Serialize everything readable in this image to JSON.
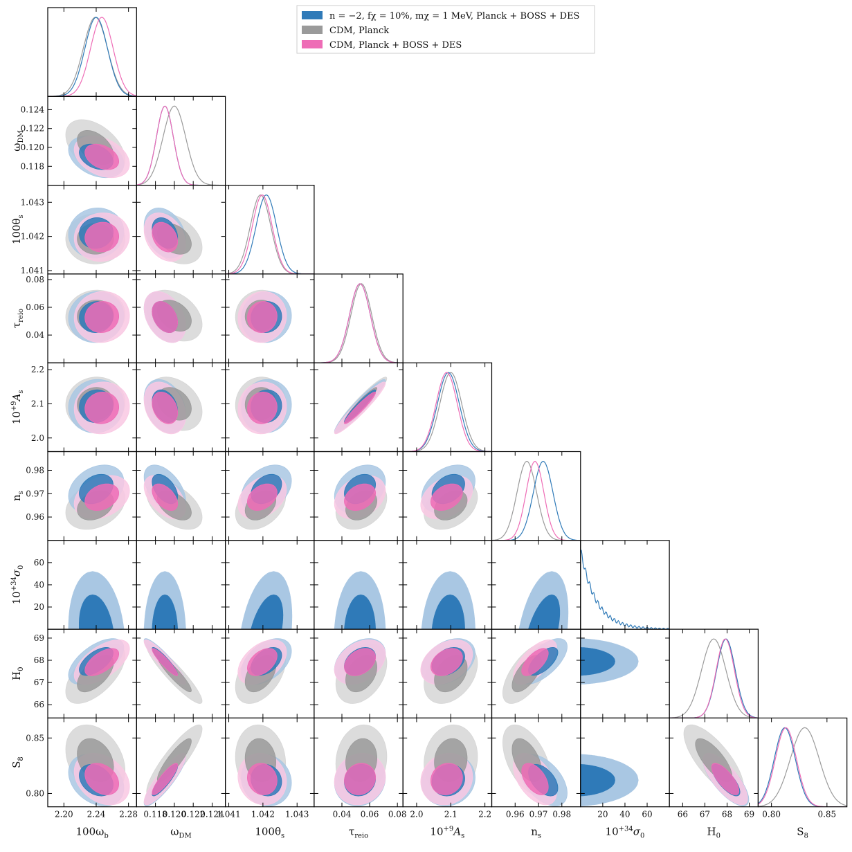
{
  "chart_data": {
    "type": "scatter",
    "subtype": "triangle-corner-plot",
    "title": "",
    "legend_position": "top-right",
    "colors": {
      "blue": "#2f7ab8",
      "blue_light": "#a9c7e3",
      "gray": "#9a9a9a",
      "gray_light": "#d6d6d6",
      "pink": "#ee6cb6",
      "pink_light": "#f9c8e3"
    },
    "series": [
      {
        "name": "n = −2, fχ = 10%, mχ = 1 MeV, Planck + BOSS + DES",
        "color": "#2f7ab8",
        "light": "#a9c7e3"
      },
      {
        "name": "CDM, Planck",
        "color": "#9a9a9a",
        "light": "#d6d6d6"
      },
      {
        "name": "CDM, Planck + BOSS + DES",
        "color": "#ee6cb6",
        "light": "#f9c8e3"
      }
    ],
    "parameters": [
      {
        "id": "wb",
        "label_main": "100ω",
        "label_sub": "b",
        "label_sup": "",
        "range": [
          2.18,
          2.29
        ],
        "ticks": [
          2.2,
          2.24,
          2.28
        ],
        "tick_labels": [
          "2.20",
          "2.24",
          "2.28"
        ],
        "means": [
          2.24,
          2.239,
          2.247
        ],
        "sigmas": [
          0.014,
          0.015,
          0.014
        ]
      },
      {
        "id": "wdm",
        "label_main": "ω",
        "label_sub": "DM",
        "label_sup": "",
        "range": [
          0.116,
          0.1254
        ],
        "ticks": [
          0.118,
          0.12,
          0.122,
          0.124
        ],
        "tick_labels": [
          "0.118",
          "0.120",
          "0.122",
          "0.124"
        ],
        "means": [
          0.119,
          0.12,
          0.119
        ],
        "sigmas": [
          0.0009,
          0.0012,
          0.0009
        ]
      },
      {
        "id": "th",
        "label_main": "100θ",
        "label_sub": "s",
        "label_sup": "",
        "range": [
          1.0409,
          1.0435
        ],
        "ticks": [
          1.041,
          1.042,
          1.043
        ],
        "tick_labels": [
          "1.041",
          "1.042",
          "1.043"
        ],
        "means": [
          1.0421,
          1.04193,
          1.04198
        ],
        "sigmas": [
          0.0003,
          0.0003,
          0.00029
        ]
      },
      {
        "id": "tau",
        "label_main": "τ",
        "label_sub": "reio",
        "label_sup": "",
        "range": [
          0.02,
          0.084
        ],
        "ticks": [
          0.04,
          0.06,
          0.08
        ],
        "tick_labels": [
          "0.04",
          "0.06",
          "0.08"
        ],
        "means": [
          0.053,
          0.054,
          0.053
        ],
        "sigmas": [
          0.0075,
          0.0075,
          0.0075
        ]
      },
      {
        "id": "as",
        "label_main": "10",
        "label_sub": "s",
        "label_sup": "+9",
        "label_tail": "A",
        "range": [
          1.96,
          2.22
        ],
        "ticks": [
          2.0,
          2.1,
          2.2
        ],
        "tick_labels": [
          "2.0",
          "2.1",
          "2.2"
        ],
        "means": [
          2.093,
          2.1,
          2.088
        ],
        "sigmas": [
          0.032,
          0.032,
          0.031
        ]
      },
      {
        "id": "ns",
        "label_main": "n",
        "label_sub": "s",
        "label_sup": "",
        "range": [
          0.95,
          0.988
        ],
        "ticks": [
          0.96,
          0.97,
          0.98
        ],
        "tick_labels": [
          "0.96",
          "0.97",
          "0.98"
        ],
        "means": [
          0.972,
          0.965,
          0.9685
        ],
        "sigmas": [
          0.0042,
          0.0042,
          0.0038
        ]
      },
      {
        "id": "s0",
        "label_main": "10",
        "label_sub": "0",
        "label_sup": "+34",
        "label_tail": "σ",
        "range": [
          0,
          80
        ],
        "ticks": [
          20,
          40,
          60
        ],
        "tick_labels": [
          "20",
          "40",
          "60"
        ],
        "means": [
          18,
          null,
          null
        ],
        "sigmas": [
          14,
          null,
          null
        ]
      },
      {
        "id": "h0",
        "label_main": "H",
        "label_sub": "0",
        "label_sup": "",
        "range": [
          65.4,
          69.4
        ],
        "ticks": [
          66,
          67,
          68,
          69
        ],
        "tick_labels": [
          "66",
          "67",
          "68",
          "69"
        ],
        "means": [
          67.95,
          67.4,
          67.92
        ],
        "sigmas": [
          0.42,
          0.55,
          0.41
        ]
      },
      {
        "id": "s8",
        "label_main": "S",
        "label_sub": "8",
        "label_sup": "",
        "range": [
          0.788,
          0.868
        ],
        "ticks": [
          0.8,
          0.85
        ],
        "tick_labels": [
          "0.80",
          "0.85"
        ],
        "means": [
          0.812,
          0.83,
          0.813
        ],
        "sigmas": [
          0.0095,
          0.013,
          0.0095
        ]
      }
    ],
    "row_tick_overrides": {
      "wdm": {
        "ticks": [
          0.118,
          0.12,
          0.122,
          0.124
        ],
        "tick_labels": [
          "0.118",
          "0.120",
          "0.122",
          "0.124"
        ]
      },
      "th": {
        "ticks": [
          1.041,
          1.042,
          1.043
        ],
        "tick_labels": [
          "1.041",
          "1.042",
          "1.043"
        ]
      },
      "tau": {
        "ticks": [
          0.04,
          0.06,
          0.08
        ],
        "tick_labels": [
          "0.04",
          "0.06",
          "0.08"
        ]
      },
      "as": {
        "ticks": [
          2.0,
          2.1,
          2.2
        ],
        "tick_labels": [
          "2.0",
          "2.1",
          "2.2"
        ]
      },
      "ns": {
        "ticks": [
          0.96,
          0.97,
          0.98
        ],
        "tick_labels": [
          "0.96",
          "0.97",
          "0.98"
        ]
      },
      "s0": {
        "ticks": [
          20,
          40,
          60
        ],
        "tick_labels": [
          "20",
          "40",
          "60"
        ]
      },
      "h0": {
        "ticks": [
          66,
          67,
          68,
          69
        ],
        "tick_labels": [
          "66",
          "67",
          "68",
          "69"
        ]
      },
      "s8": {
        "ticks": [
          0.8,
          0.85
        ],
        "tick_labels": [
          "0.80",
          "0.85"
        ]
      }
    },
    "correlations": {
      "wdm|wb": [
        -0.35,
        -0.45,
        -0.35
      ],
      "th|wb": [
        0.05,
        0.0,
        0.05
      ],
      "th|wdm": [
        -0.3,
        -0.35,
        -0.3
      ],
      "tau|wb": [
        0.05,
        0.05,
        0.05
      ],
      "tau|wdm": [
        -0.35,
        -0.35,
        -0.35
      ],
      "tau|th": [
        0.05,
        0.05,
        0.05
      ],
      "as|wb": [
        0.05,
        0.05,
        0.05
      ],
      "as|wdm": [
        -0.3,
        -0.3,
        -0.3
      ],
      "as|th": [
        0.05,
        0.05,
        0.05
      ],
      "as|tau": [
        0.95,
        0.95,
        0.95
      ],
      "ns|wb": [
        0.3,
        0.3,
        0.3
      ],
      "ns|wdm": [
        -0.5,
        -0.5,
        -0.5
      ],
      "ns|th": [
        0.35,
        0.35,
        0.35
      ],
      "ns|tau": [
        0.3,
        0.3,
        0.3
      ],
      "ns|as": [
        0.35,
        0.35,
        0.35
      ],
      "s0|wb": [
        -0.2,
        null,
        null
      ],
      "s0|wdm": [
        0.0,
        null,
        null
      ],
      "s0|th": [
        0.45,
        null,
        null
      ],
      "s0|tau": [
        0.05,
        null,
        null
      ],
      "s0|as": [
        0.1,
        null,
        null
      ],
      "s0|ns": [
        0.55,
        null,
        null
      ],
      "h0|wb": [
        0.6,
        0.6,
        0.6
      ],
      "h0|wdm": [
        -0.92,
        -0.92,
        -0.92
      ],
      "h0|th": [
        0.45,
        0.45,
        0.45
      ],
      "h0|tau": [
        0.35,
        0.35,
        0.35
      ],
      "h0|as": [
        0.35,
        0.35,
        0.35
      ],
      "h0|ns": [
        0.65,
        0.65,
        0.65
      ],
      "h0|s0": [
        0.0,
        null,
        null
      ],
      "s8|wb": [
        -0.3,
        -0.3,
        -0.3
      ],
      "s8|wdm": [
        0.88,
        0.88,
        0.88
      ],
      "s8|th": [
        -0.1,
        -0.1,
        -0.1
      ],
      "s8|tau": [
        0.1,
        0.1,
        0.1
      ],
      "s8|as": [
        0.1,
        0.1,
        0.1
      ],
      "s8|ns": [
        -0.5,
        -0.5,
        -0.5
      ],
      "s8|s0": [
        0.0,
        null,
        null
      ],
      "s8|h0": [
        -0.75,
        -0.75,
        -0.75
      ]
    }
  }
}
